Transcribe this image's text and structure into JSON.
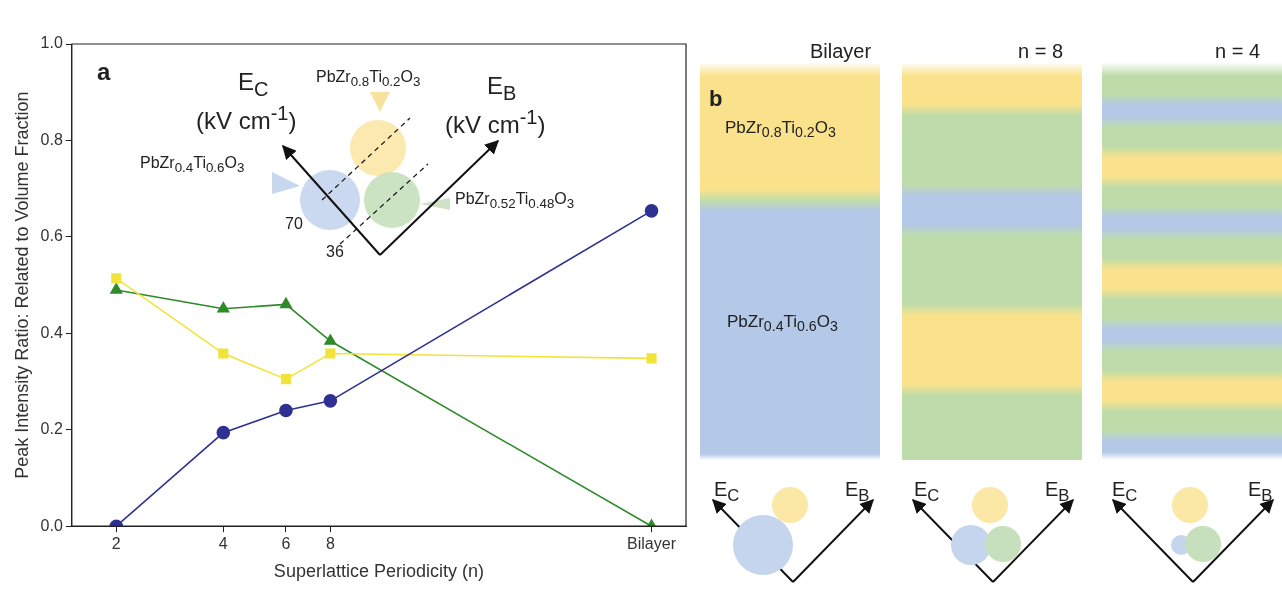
{
  "chart_data": [
    {
      "type": "line",
      "x": [
        2,
        4,
        6,
        8,
        64
      ],
      "xlim": [
        1.5,
        80
      ],
      "log": "x",
      "xticks": [
        2,
        4,
        6,
        8,
        {
          "value": 64,
          "label": "Bilayer"
        }
      ],
      "ylim": [
        0,
        1.0
      ],
      "yticks": [
        {
          "value": 0,
          "label": "0.0"
        },
        {
          "value": 0.2,
          "label": "0.2"
        },
        {
          "value": 0.4,
          "label": "0.4"
        },
        {
          "value": 0.6,
          "label": "0.6"
        },
        {
          "value": 0.8,
          "label": "0.8"
        },
        {
          "value": 1.0,
          "label": "1.0"
        }
      ],
      "xlabel": "Superlattice Periodicity (n)",
      "ylabel": "Peak Intensity Ratio: Related to Volume Fraction",
      "grid": false,
      "legend": false,
      "series": [
        {
          "color": "#2e3192",
          "marker": "circle",
          "values": [
            0.0,
            0.194,
            0.24,
            0.26,
            0.654
          ]
        },
        {
          "color": "#f2e33a",
          "marker": "square",
          "values": [
            0.514,
            0.358,
            0.305,
            0.358,
            0.348
          ]
        },
        {
          "color": "#2f8a2a",
          "marker": "triangle",
          "values": [
            0.49,
            0.451,
            0.46,
            0.384,
            0.0
          ]
        }
      ],
      "annotations": [
        "a",
        "E$_{C}$",
        "(kV cm$^{-1}$)",
        "E$_{B}$",
        "(kV cm$^{-1}$)",
        "PbZr$_{0.8}$Ti$_{0.2}$O$_{3}$",
        "PbZr$_{0.4}$Ti$_{0.6}$O$_{3}$",
        "PbZr$_{0.52}$Ti$_{0.48}$O$_{3}$",
        "70",
        "36"
      ]
    },
    {
      "type": "other",
      "annotations": [
        "b",
        "Bilayer",
        "n = 8",
        "n = 4",
        "PbZr$_{0.8}$Ti$_{0.2}$O$_{3}$",
        "PbZr$_{0.4}$Ti$_{0.6}$O$_{3}$",
        "E$_{C}$",
        "E$_{B}$",
        "E$_{C}$",
        "E$_{B}$",
        "E$_{C}$",
        "E$_{B}$"
      ]
    }
  ]
}
